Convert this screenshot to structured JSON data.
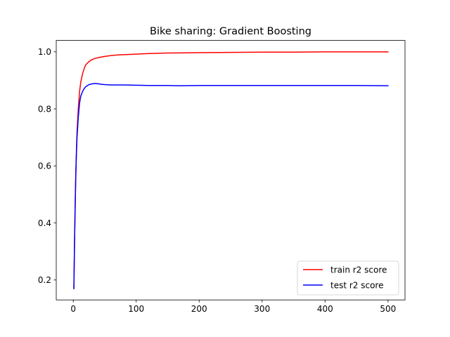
{
  "chart_data": {
    "type": "line",
    "title": "Bike sharing: Gradient Boosting",
    "xlabel": "",
    "ylabel": "",
    "xlim": [
      -27,
      527
    ],
    "ylim": [
      0.13,
      1.04
    ],
    "xticks": [
      0,
      100,
      200,
      300,
      400,
      500
    ],
    "yticks": [
      0.2,
      0.4,
      0.6,
      0.8,
      1.0
    ],
    "ytick_labels": [
      "0.2",
      "0.4",
      "0.6",
      "0.8",
      "1.0"
    ],
    "grid": false,
    "legend_position": "lower-right",
    "series": [
      {
        "name": "train r2 score",
        "color": "#ff0000",
        "x": [
          1,
          2,
          3,
          4,
          5,
          6,
          8,
          10,
          12,
          15,
          18,
          20,
          25,
          30,
          35,
          40,
          50,
          60,
          70,
          80,
          100,
          120,
          150,
          200,
          250,
          300,
          350,
          400,
          450,
          500
        ],
        "y": [
          0.17,
          0.33,
          0.46,
          0.57,
          0.65,
          0.72,
          0.8,
          0.86,
          0.895,
          0.925,
          0.945,
          0.955,
          0.966,
          0.973,
          0.977,
          0.98,
          0.984,
          0.987,
          0.989,
          0.99,
          0.992,
          0.994,
          0.996,
          0.997,
          0.998,
          0.999,
          0.999,
          1.0,
          1.0,
          1.0
        ]
      },
      {
        "name": "test r2 score",
        "color": "#0000ff",
        "x": [
          1,
          2,
          3,
          4,
          5,
          6,
          8,
          10,
          12,
          15,
          18,
          20,
          25,
          30,
          35,
          40,
          45,
          50,
          60,
          80,
          100,
          120,
          150,
          170,
          200,
          250,
          300,
          350,
          400,
          450,
          500
        ],
        "y": [
          0.17,
          0.32,
          0.45,
          0.56,
          0.64,
          0.7,
          0.77,
          0.82,
          0.845,
          0.862,
          0.873,
          0.878,
          0.885,
          0.888,
          0.889,
          0.888,
          0.886,
          0.885,
          0.884,
          0.884,
          0.883,
          0.882,
          0.882,
          0.881,
          0.882,
          0.882,
          0.882,
          0.882,
          0.882,
          0.882,
          0.881
        ]
      }
    ]
  }
}
